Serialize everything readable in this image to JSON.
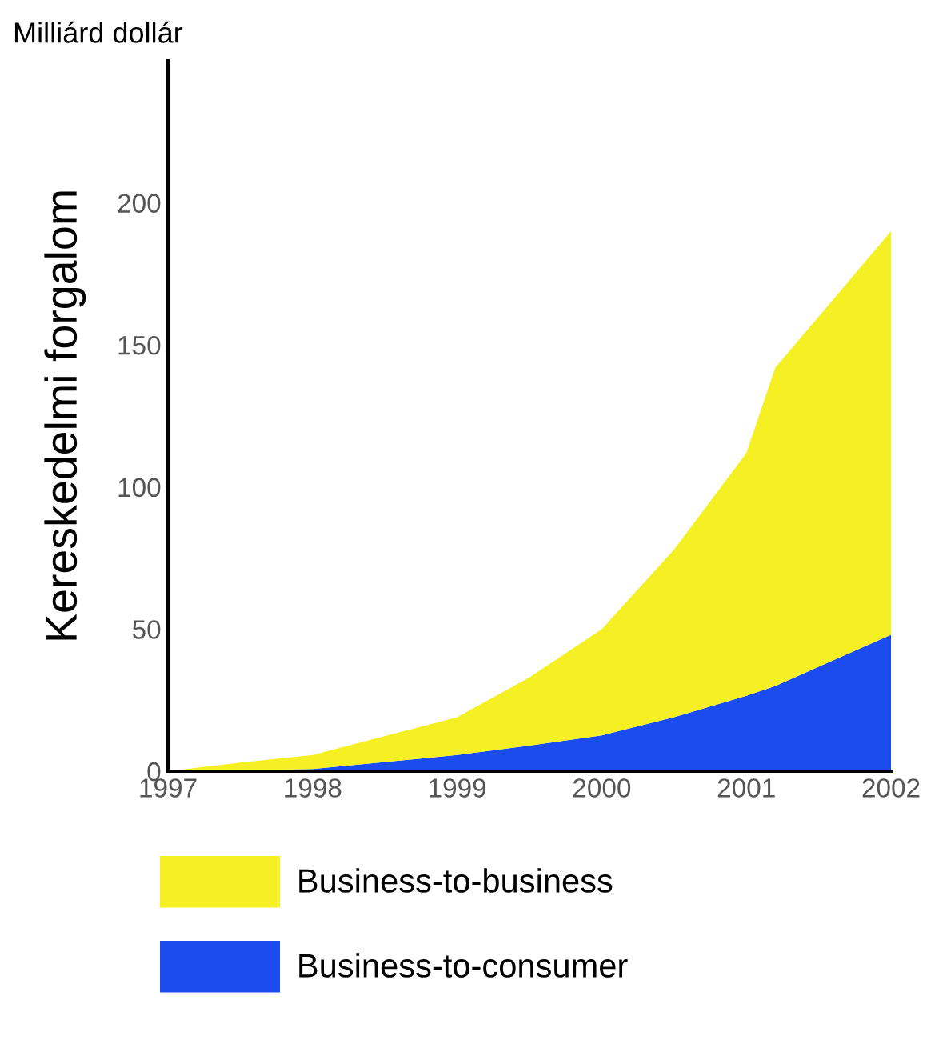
{
  "chart_data": {
    "type": "area",
    "stacked": true,
    "ylabel": "Kereskedelmi forgalom",
    "annotations": [
      "Milliárd dollár"
    ],
    "x": [
      1997,
      1997.5,
      1998,
      1999,
      1999.5,
      2000,
      2000.5,
      2001,
      2001.2,
      2002
    ],
    "series": [
      {
        "name": "Business-to-consumer",
        "color": "#1a4cf0",
        "values": [
          0,
          0.3,
          0.8,
          5.7,
          9,
          12.6,
          19,
          26.5,
          30,
          48
        ]
      },
      {
        "name": "Business-to-business",
        "color": "#f5f024",
        "values": [
          0,
          2.7,
          4.9,
          13.3,
          24,
          37.4,
          59,
          85.5,
          112,
          142
        ]
      }
    ],
    "xlim": [
      1997,
      2002
    ],
    "xticks": [
      1997,
      1998,
      1999,
      2000,
      2001,
      2002
    ],
    "ylim": [
      0,
      250
    ],
    "yticks": [
      0,
      50,
      100,
      150,
      200
    ],
    "grid": false,
    "legend": "bottom"
  }
}
